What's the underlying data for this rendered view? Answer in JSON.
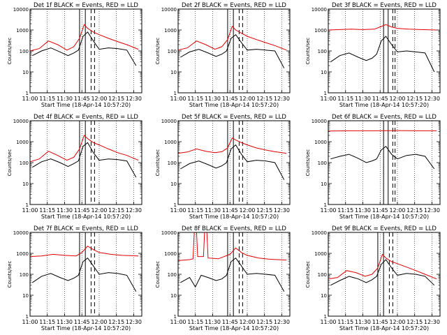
{
  "page": {
    "xlabel": "Start Time (18-Apr-14 10:57:20)",
    "ylabel": "Counts/sec",
    "x_ticks": [
      "11:00",
      "11:15",
      "11:30",
      "11:45",
      "12:00",
      "12:15",
      "12:30"
    ],
    "y_ticks": [
      "1",
      "10",
      "100",
      "1000",
      "10000"
    ],
    "colors": {
      "events": "#000000",
      "lld": "#e00000"
    }
  },
  "chart_data": [
    {
      "type": "line",
      "title": "Det 1f BLACK = Events, RED = LLD",
      "xlim": [
        "11:00",
        "12:37"
      ],
      "ylim": [
        1,
        10000
      ],
      "yscale": "log",
      "xlabel": "Start Time (18-Apr-14 10:57:20)",
      "ylabel": "Counts/sec",
      "series": [
        {
          "name": "Events",
          "color": "#000000",
          "x": [
            "11:02",
            "11:10",
            "11:18",
            "11:26",
            "11:33",
            "11:38",
            "11:42",
            "11:46",
            "11:50",
            "11:55",
            "12:00",
            "12:08",
            "12:16",
            "12:24",
            "12:32"
          ],
          "y": [
            60,
            100,
            140,
            90,
            60,
            80,
            110,
            500,
            800,
            300,
            120,
            140,
            130,
            110,
            20
          ]
        },
        {
          "name": "LLD",
          "color": "#e00000",
          "x": [
            "11:00",
            "11:08",
            "11:16",
            "11:24",
            "11:32",
            "11:38",
            "11:43",
            "11:47",
            "11:50",
            "11:55",
            "12:00",
            "12:08",
            "12:16",
            "12:24",
            "12:34"
          ],
          "y": [
            100,
            130,
            300,
            200,
            110,
            160,
            400,
            1800,
            1200,
            800,
            600,
            400,
            280,
            200,
            120
          ]
        }
      ],
      "vlines": {
        "solid": [
          "11:43",
          "11:48"
        ],
        "dashed": [
          "11:53",
          "11:56"
        ]
      }
    },
    {
      "type": "line",
      "title": "Det 2f BLACK = Events, RED = LLD",
      "xlim": [
        "11:00",
        "12:37"
      ],
      "ylim": [
        1,
        10000
      ],
      "yscale": "log",
      "xlabel": "Start Time (18-Apr-14 10:57:20)",
      "ylabel": "Counts/sec",
      "series": [
        {
          "name": "Events",
          "color": "#000000",
          "x": [
            "11:02",
            "11:10",
            "11:18",
            "11:26",
            "11:33",
            "11:38",
            "11:42",
            "11:46",
            "11:50",
            "11:55",
            "12:00",
            "12:08",
            "12:16",
            "12:24",
            "12:32"
          ],
          "y": [
            50,
            90,
            120,
            80,
            55,
            70,
            100,
            400,
            600,
            250,
            110,
            120,
            110,
            100,
            15
          ]
        },
        {
          "name": "LLD",
          "color": "#e00000",
          "x": [
            "11:00",
            "11:08",
            "11:16",
            "11:24",
            "11:32",
            "11:38",
            "11:43",
            "11:47",
            "11:50",
            "11:55",
            "12:00",
            "12:08",
            "12:16",
            "12:24",
            "12:34"
          ],
          "y": [
            110,
            140,
            300,
            200,
            120,
            160,
            350,
            1500,
            1000,
            700,
            500,
            350,
            250,
            180,
            110
          ]
        }
      ],
      "vlines": {
        "solid": [
          "11:43",
          "11:48"
        ],
        "dashed": [
          "11:53",
          "11:56"
        ]
      }
    },
    {
      "type": "line",
      "title": "Det 3f BLACK = Events, RED = LLD",
      "xlim": [
        "11:00",
        "12:37"
      ],
      "ylim": [
        1,
        10000
      ],
      "yscale": "log",
      "xlabel": "Start Time (18-Apr-14 10:57:20)",
      "ylabel": "Counts/sec",
      "series": [
        {
          "name": "Events",
          "color": "#000000",
          "x": [
            "11:02",
            "11:10",
            "11:18",
            "11:26",
            "11:33",
            "11:38",
            "11:42",
            "11:46",
            "11:50",
            "11:55",
            "12:00",
            "12:08",
            "12:16",
            "12:24",
            "12:32"
          ],
          "y": [
            30,
            60,
            80,
            50,
            35,
            45,
            70,
            300,
            500,
            200,
            90,
            100,
            90,
            80,
            10
          ]
        },
        {
          "name": "LLD",
          "color": "#e00000",
          "x": [
            "11:00",
            "11:10",
            "11:20",
            "11:30",
            "11:40",
            "11:45",
            "11:50",
            "11:55",
            "12:00",
            "12:10",
            "12:20",
            "12:34"
          ],
          "y": [
            1000,
            1050,
            1100,
            1050,
            1100,
            1400,
            1800,
            1400,
            1200,
            1100,
            1050,
            1000
          ]
        }
      ],
      "vlines": {
        "solid": [
          "11:48",
          "11:52"
        ],
        "dashed": [
          "11:56",
          "11:58"
        ]
      }
    },
    {
      "type": "line",
      "title": "Det 4f BLACK = Events, RED = LLD",
      "xlim": [
        "11:00",
        "12:37"
      ],
      "ylim": [
        1,
        10000
      ],
      "yscale": "log",
      "xlabel": "Start Time (18-Apr-14 10:57:20)",
      "ylabel": "Counts/sec",
      "series": [
        {
          "name": "Events",
          "color": "#000000",
          "x": [
            "11:02",
            "11:10",
            "11:18",
            "11:26",
            "11:33",
            "11:38",
            "11:42",
            "11:46",
            "11:50",
            "11:55",
            "12:00",
            "12:08",
            "12:16",
            "12:24",
            "12:32"
          ],
          "y": [
            60,
            110,
            150,
            100,
            65,
            90,
            120,
            600,
            900,
            300,
            130,
            150,
            140,
            120,
            20
          ]
        },
        {
          "name": "LLD",
          "color": "#e00000",
          "x": [
            "11:00",
            "11:08",
            "11:16",
            "11:24",
            "11:32",
            "11:38",
            "11:43",
            "11:47",
            "11:50",
            "11:55",
            "12:00",
            "12:08",
            "12:16",
            "12:24",
            "12:34"
          ],
          "y": [
            110,
            150,
            350,
            220,
            130,
            180,
            450,
            2000,
            1400,
            900,
            700,
            450,
            300,
            220,
            130
          ]
        }
      ],
      "vlines": {
        "solid": [
          "11:43",
          "11:48"
        ],
        "dashed": [
          "11:53",
          "11:56"
        ]
      }
    },
    {
      "type": "line",
      "title": "Det 5f BLACK = Events, RED = LLD",
      "xlim": [
        "11:00",
        "12:37"
      ],
      "ylim": [
        1,
        10000
      ],
      "yscale": "log",
      "xlabel": "Start Time (18-Apr-14 10:57:20)",
      "ylabel": "Counts/sec",
      "series": [
        {
          "name": "Events",
          "color": "#000000",
          "x": [
            "11:02",
            "11:10",
            "11:18",
            "11:26",
            "11:33",
            "11:38",
            "11:42",
            "11:46",
            "11:50",
            "11:55",
            "12:00",
            "12:08",
            "12:16",
            "12:24",
            "12:32"
          ],
          "y": [
            50,
            90,
            120,
            80,
            55,
            70,
            100,
            450,
            700,
            250,
            110,
            130,
            120,
            100,
            15
          ]
        },
        {
          "name": "LLD",
          "color": "#e00000",
          "x": [
            "11:00",
            "11:08",
            "11:16",
            "11:24",
            "11:32",
            "11:38",
            "11:43",
            "11:47",
            "11:50",
            "11:55",
            "12:00",
            "12:08",
            "12:16",
            "12:24",
            "12:34"
          ],
          "y": [
            280,
            320,
            450,
            350,
            300,
            330,
            500,
            1500,
            1200,
            900,
            700,
            500,
            400,
            330,
            280
          ]
        }
      ],
      "vlines": {
        "solid": [
          "11:43",
          "11:48"
        ],
        "dashed": [
          "11:53",
          "11:56"
        ]
      }
    },
    {
      "type": "line",
      "title": "Det 6f BLACK = Events, RED = LLD",
      "xlim": [
        "11:00",
        "12:37"
      ],
      "ylim": [
        1,
        10000
      ],
      "yscale": "log",
      "xlabel": "Start Time (18-Apr-14 10:57:20)",
      "ylabel": "Counts/sec",
      "series": [
        {
          "name": "Events",
          "color": "#000000",
          "x": [
            "11:02",
            "11:10",
            "11:18",
            "11:26",
            "11:33",
            "11:38",
            "11:42",
            "11:46",
            "11:50",
            "11:55",
            "12:00",
            "12:08",
            "12:16",
            "12:24",
            "12:32"
          ],
          "y": [
            150,
            200,
            250,
            160,
            100,
            120,
            150,
            400,
            600,
            250,
            150,
            220,
            250,
            200,
            50
          ]
        },
        {
          "name": "LLD",
          "color": "#e00000",
          "x": [
            "11:00",
            "11:20",
            "11:40",
            "12:00",
            "12:20",
            "12:34"
          ],
          "y": [
            3200,
            3300,
            3300,
            3400,
            3300,
            3300
          ]
        }
      ],
      "vlines": {
        "solid": [
          "11:48",
          "11:52"
        ],
        "dashed": [
          "11:56",
          "11:58"
        ]
      }
    },
    {
      "type": "line",
      "title": "Det 7f BLACK = Events, RED = LLD",
      "xlim": [
        "11:00",
        "12:37"
      ],
      "ylim": [
        1,
        10000
      ],
      "yscale": "log",
      "xlabel": "Start Time (18-Apr-14 10:57:20)",
      "ylabel": "Counts/sec",
      "series": [
        {
          "name": "Events",
          "color": "#000000",
          "x": [
            "11:02",
            "11:10",
            "11:18",
            "11:26",
            "11:33",
            "11:38",
            "11:42",
            "11:46",
            "11:50",
            "11:55",
            "12:00",
            "12:08",
            "12:16",
            "12:24",
            "12:32"
          ],
          "y": [
            40,
            80,
            110,
            70,
            50,
            65,
            90,
            400,
            600,
            250,
            100,
            120,
            110,
            90,
            15
          ]
        },
        {
          "name": "LLD",
          "color": "#e00000",
          "x": [
            "11:00",
            "11:10",
            "11:20",
            "11:30",
            "11:40",
            "11:45",
            "11:50",
            "11:55",
            "12:00",
            "12:10",
            "12:20",
            "12:34"
          ],
          "y": [
            700,
            750,
            900,
            800,
            750,
            1100,
            2200,
            1500,
            1100,
            900,
            800,
            750
          ]
        }
      ],
      "vlines": {
        "solid": [
          "11:43",
          "11:48"
        ],
        "dashed": [
          "11:53",
          "11:56"
        ]
      }
    },
    {
      "type": "line",
      "title": "Det 8f BLACK = Events, RED = LLD",
      "xlim": [
        "11:00",
        "12:37"
      ],
      "ylim": [
        1,
        10000
      ],
      "yscale": "log",
      "xlabel": "Start Time (18-Apr-14 10:57:20)",
      "ylabel": "Counts/sec",
      "series": [
        {
          "name": "Events",
          "color": "#000000",
          "x": [
            "11:02",
            "11:10",
            "11:15",
            "11:20",
            "11:26",
            "11:33",
            "11:38",
            "11:42",
            "11:46",
            "11:50",
            "11:55",
            "12:00",
            "12:08",
            "12:16",
            "12:24",
            "12:32"
          ],
          "y": [
            40,
            70,
            25,
            90,
            70,
            50,
            60,
            90,
            400,
            600,
            250,
            100,
            110,
            100,
            90,
            15
          ]
        },
        {
          "name": "LLD",
          "color": "#e00000",
          "x": [
            "11:00",
            "11:10",
            "11:13",
            "11:14",
            "11:16",
            "11:17",
            "11:22",
            "11:23",
            "11:25",
            "11:26",
            "11:35",
            "11:45",
            "11:50",
            "11:55",
            "12:00",
            "12:10",
            "12:20",
            "12:34"
          ],
          "y": [
            450,
            500,
            550,
            10000,
            10000,
            700,
            700,
            10000,
            10000,
            600,
            550,
            900,
            1800,
            1100,
            800,
            600,
            520,
            480
          ]
        }
      ],
      "vlines": {
        "solid": [
          "11:43",
          "11:48"
        ],
        "dashed": [
          "11:53",
          "11:56"
        ]
      }
    },
    {
      "type": "line",
      "title": "Det 9f BLACK = Events, RED = LLD",
      "xlim": [
        "11:00",
        "12:37"
      ],
      "ylim": [
        1,
        10000
      ],
      "yscale": "log",
      "xlabel": "Start Time (18-Apr-14 10:57:20)",
      "ylabel": "Counts/sec",
      "series": [
        {
          "name": "Events",
          "color": "#000000",
          "x": [
            "11:02",
            "11:10",
            "11:18",
            "11:26",
            "11:33",
            "11:38",
            "11:42",
            "11:46",
            "11:50",
            "11:55",
            "12:00",
            "12:08",
            "12:16",
            "12:24",
            "12:32"
          ],
          "y": [
            30,
            50,
            80,
            60,
            40,
            55,
            80,
            300,
            500,
            200,
            90,
            110,
            100,
            80,
            30
          ]
        },
        {
          "name": "LLD",
          "color": "#e00000",
          "x": [
            "11:00",
            "11:08",
            "11:16",
            "11:24",
            "11:32",
            "11:38",
            "11:43",
            "11:47",
            "11:50",
            "11:55",
            "12:00",
            "12:08",
            "12:16",
            "12:24",
            "12:34"
          ],
          "y": [
            60,
            70,
            150,
            120,
            80,
            100,
            200,
            900,
            600,
            400,
            320,
            220,
            150,
            100,
            60
          ]
        }
      ],
      "vlines": {
        "solid": [
          "11:43",
          "11:48"
        ],
        "dashed": [
          "11:53",
          "11:56"
        ]
      }
    }
  ]
}
